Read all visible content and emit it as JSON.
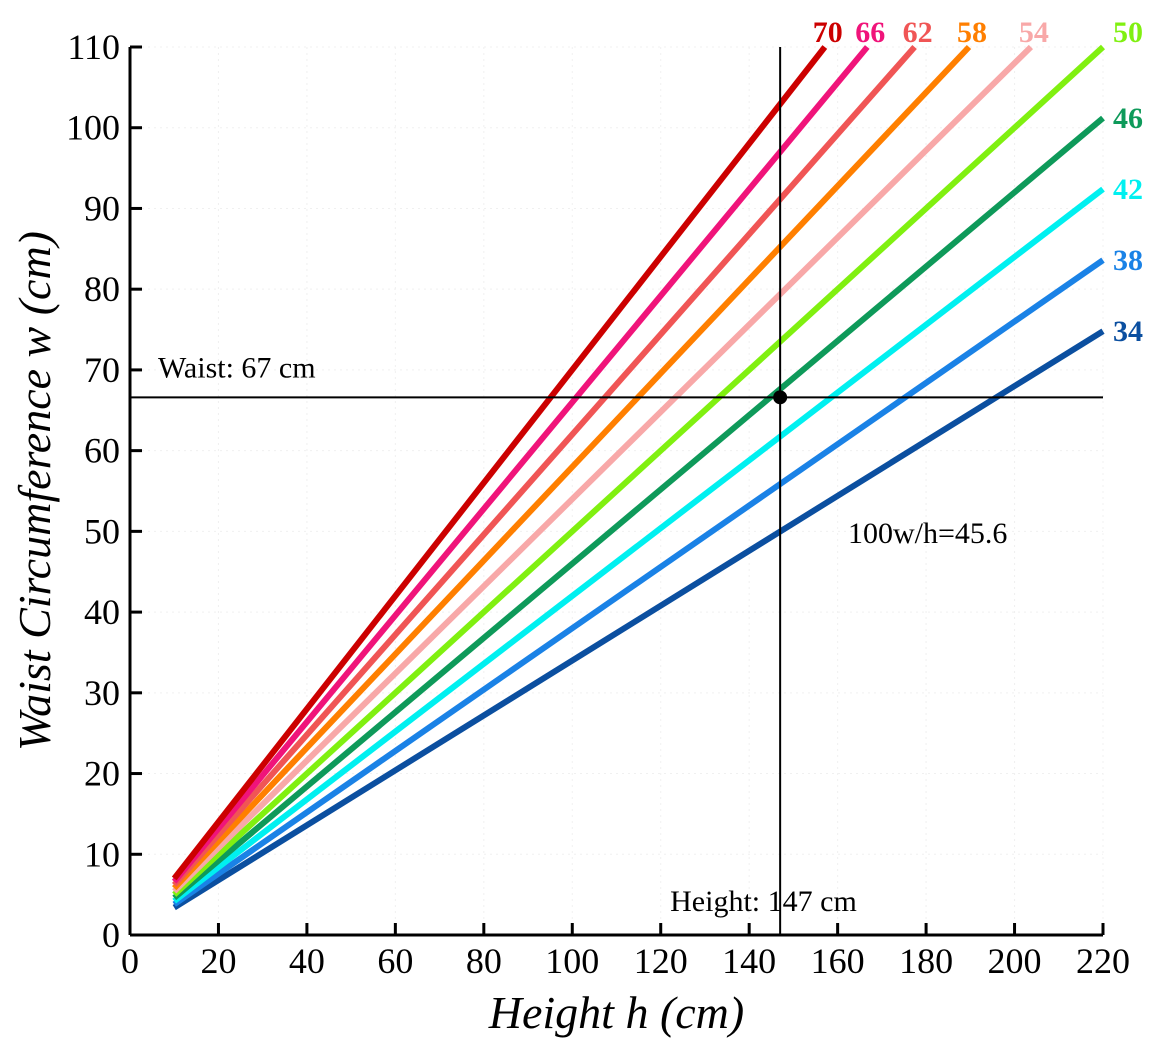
{
  "chart_data": {
    "type": "line",
    "xlabel": "Height h (cm)",
    "ylabel": "Waist Circumference w (cm)",
    "xlim": [
      0,
      220
    ],
    "ylim": [
      0,
      110
    ],
    "xticks": [
      0,
      20,
      40,
      60,
      80,
      100,
      120,
      140,
      160,
      180,
      200,
      220
    ],
    "yticks": [
      0,
      10,
      20,
      30,
      40,
      50,
      60,
      70,
      80,
      90,
      100,
      110
    ],
    "grid": false,
    "series": [
      {
        "name": "34",
        "color": "#0b4fa0",
        "x": [
          10,
          220
        ],
        "y": [
          3.4,
          74.8
        ]
      },
      {
        "name": "38",
        "color": "#1a82e6",
        "x": [
          10,
          220
        ],
        "y": [
          3.8,
          83.6
        ]
      },
      {
        "name": "42",
        "color": "#00f0f0",
        "x": [
          10,
          220
        ],
        "y": [
          4.2,
          92.4
        ]
      },
      {
        "name": "46",
        "color": "#0e9a5a",
        "x": [
          10,
          220
        ],
        "y": [
          4.6,
          101.2
        ]
      },
      {
        "name": "50",
        "color": "#80f010",
        "x": [
          10,
          220
        ],
        "y": [
          5.0,
          110.0
        ]
      },
      {
        "name": "54",
        "color": "#f8a8a8",
        "x": [
          10,
          203.7
        ],
        "y": [
          5.4,
          110.0
        ]
      },
      {
        "name": "58",
        "color": "#ff7f00",
        "x": [
          10,
          189.7
        ],
        "y": [
          5.8,
          110.0
        ]
      },
      {
        "name": "62",
        "color": "#f05555",
        "x": [
          10,
          177.4
        ],
        "y": [
          6.2,
          110.0
        ]
      },
      {
        "name": "66",
        "color": "#f0147a",
        "x": [
          10,
          166.7
        ],
        "y": [
          6.6,
          110.0
        ]
      },
      {
        "name": "70",
        "color": "#cc0000",
        "x": [
          10,
          157.1
        ],
        "y": [
          7.0,
          110.0
        ]
      }
    ],
    "reference_point": {
      "x": 147,
      "y": 66.6
    },
    "annotations": {
      "waist": "Waist: 67 cm",
      "height": "Height: 147 cm",
      "ratio": "100w/h=45.6"
    }
  }
}
